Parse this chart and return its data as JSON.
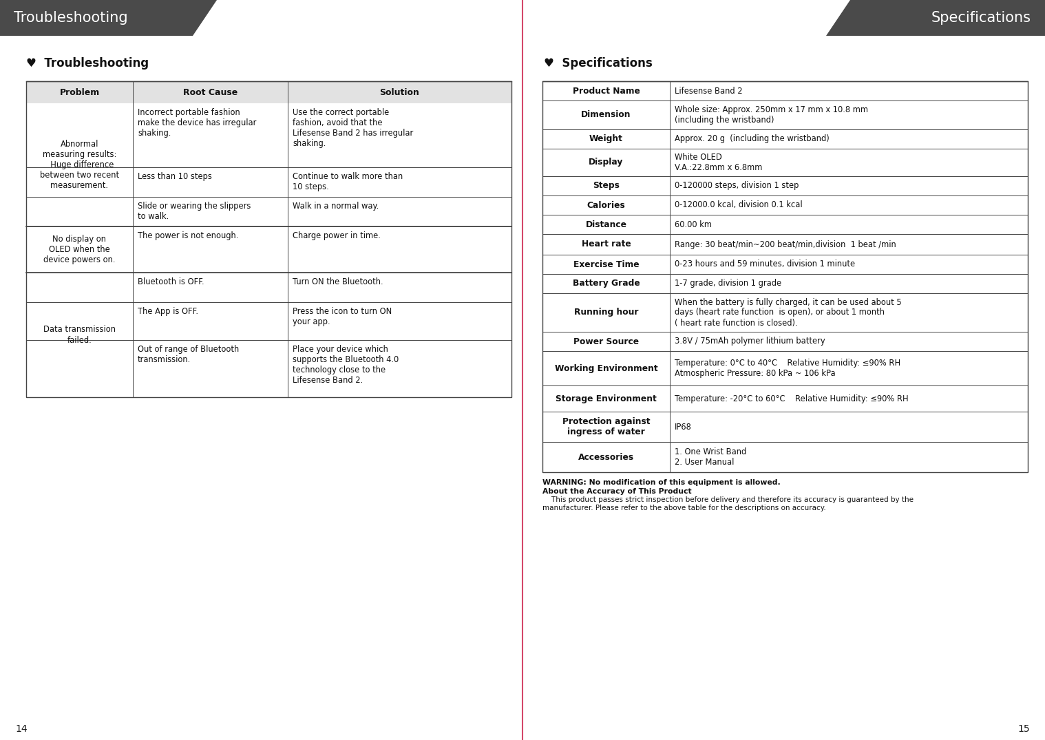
{
  "bg_color": "#ffffff",
  "page_divider_color": "#d4476a",
  "header_bg_color": "#4a4a4a",
  "header_text_color": "#ffffff",
  "left_header": "Troubleshooting",
  "right_header": "Specifications",
  "left_page_num": "14",
  "right_page_num": "15",
  "left_section_title": "♥  Troubleshooting",
  "right_section_title": "♥  Specifications",
  "table_border_color": "#444444",
  "trouble_headers": [
    "Problem",
    "Root Cause",
    "Solution"
  ],
  "trouble_rows": [
    {
      "problem": "Abnormal\nmeasuring results:\n  Huge difference\nbetween two recent\nmeasurement.",
      "root_cause": "Incorrect portable fashion\nmake the device has irregular\nshaking.",
      "solution": "Use the correct portable\nfashion, avoid that the\nLifesense Band 2 has irregular\nshaking."
    },
    {
      "problem": "",
      "root_cause": "Less than 10 steps",
      "solution": "Continue to walk more than\n10 steps."
    },
    {
      "problem": "",
      "root_cause": "Slide or wearing the slippers\nto walk.",
      "solution": "Walk in a normal way."
    },
    {
      "problem": "No display on\nOLED when the\ndevice powers on.",
      "root_cause": "The power is not enough.",
      "solution": "Charge power in time."
    },
    {
      "problem": "Data transmission\nfailed.",
      "root_cause": "Bluetooth is OFF.",
      "solution": "Turn ON the Bluetooth."
    },
    {
      "problem": "",
      "root_cause": "The App is OFF.",
      "solution": "Press the icon to turn ON\nyour app."
    },
    {
      "problem": "",
      "root_cause": "Out of range of Bluetooth\ntransmission.",
      "solution": "Place your device which\nsupports the Bluetooth 4.0\ntechnology close to the\nLifesense Band 2."
    }
  ],
  "spec_rows": [
    {
      "label": "Product Name",
      "value": "Lifesense Band 2"
    },
    {
      "label": "Dimension",
      "value": "Whole size: Approx. 250mm x 17 mm x 10.8 mm\n(including the wristband)"
    },
    {
      "label": "Weight",
      "value": "Approx. 20 g  (including the wristband)"
    },
    {
      "label": "Display",
      "value": "White OLED\nV.A.:22.8mm x 6.8mm"
    },
    {
      "label": "Steps",
      "value": "0-120000 steps, division 1 step"
    },
    {
      "label": "Calories",
      "value": "0-12000.0 kcal, division 0.1 kcal"
    },
    {
      "label": "Distance",
      "value": "60.00 km"
    },
    {
      "label": "Heart rate",
      "value": "Range: 30 beat/min~200 beat/min,division  1 beat /min"
    },
    {
      "label": "Exercise Time",
      "value": "0-23 hours and 59 minutes, division 1 minute"
    },
    {
      "label": "Battery Grade",
      "value": "1-7 grade, division 1 grade"
    },
    {
      "label": "Running hour",
      "value": "When the battery is fully charged, it can be used about 5\ndays (heart rate function  is open), or about 1 month\n( heart rate function is closed)."
    },
    {
      "label": "Power Source",
      "value": "3.8V / 75mAh polymer lithium battery"
    },
    {
      "label": "Working Environment",
      "value": "Temperature: 0°C to 40°C    Relative Humidity: ≤90% RH\nAtmospheric Pressure: 80 kPa ~ 106 kPa"
    },
    {
      "label": "Storage Environment",
      "value": "Temperature: -20°C to 60°C    Relative Humidity: ≤90% RH"
    },
    {
      "label": "Protection against\ningress of water",
      "value": "IP68"
    },
    {
      "label": "Accessories",
      "value": "1. One Wrist Band\n2. User Manual"
    }
  ],
  "warning_text": "WARNING: No modification of this equipment is allowed.\nAbout the Accuracy of This Product\n    This product passes strict inspection before delivery and therefore its accuracy is guaranteed by the\nmanufacturer. Please refer to the above table for the descriptions on accuracy."
}
